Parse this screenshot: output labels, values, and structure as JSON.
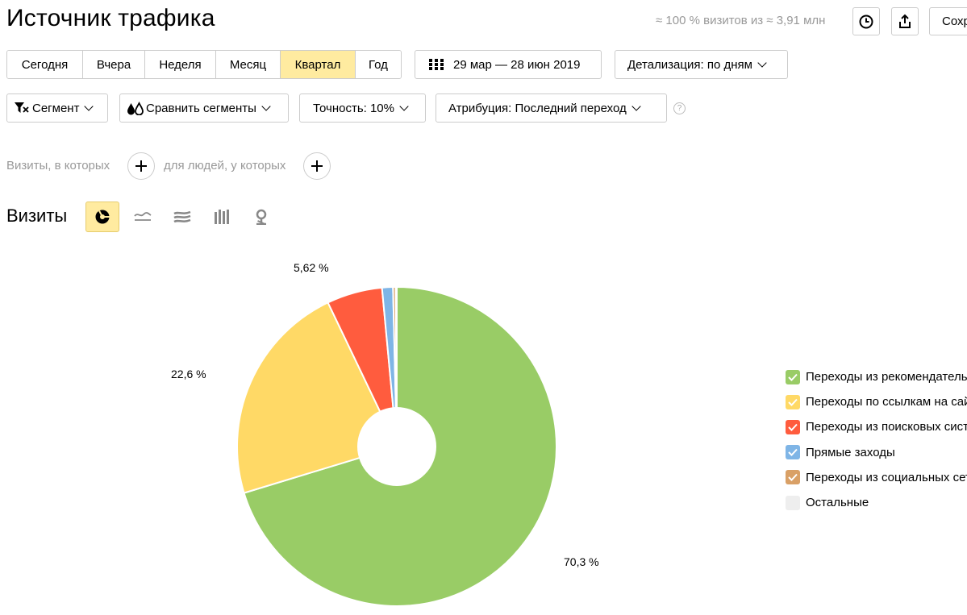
{
  "header": {
    "title": "Источник трафика",
    "sample_info": "≈ 100 % визитов из ≈ 3,91 млн",
    "save_label": "Сохранить"
  },
  "period": {
    "buttons": [
      "Сегодня",
      "Вчера",
      "Неделя",
      "Месяц",
      "Квартал",
      "Год"
    ],
    "active": "Квартал",
    "date_range": "29 мар — 28 июн 2019",
    "detail_label": "Детализация: по дням"
  },
  "filters": {
    "segment_label": "Сегмент",
    "compare_label": "Сравнить сегменты",
    "accuracy_label": "Точность: 10%",
    "attribution_label": "Атрибуция: Последний переход",
    "help_glyph": "?"
  },
  "conditions": {
    "visits_label": "Визиты, в которых",
    "people_label": "для людей, у которых"
  },
  "chart_section": {
    "title": "Визиты",
    "chart_types": [
      "pie-chart-icon",
      "line-chart-icon",
      "area-chart-icon",
      "bar-chart-icon",
      "map-icon"
    ],
    "active_type": "pie-chart-icon"
  },
  "chart_data": {
    "type": "pie",
    "donut": true,
    "series": [
      {
        "name": "Переходы из рекомендательных систем",
        "value": 70.3,
        "label": "70,3 %",
        "color": "#99cc66"
      },
      {
        "name": "Переходы по ссылкам на сайтах",
        "value": 22.6,
        "label": "22,6 %",
        "color": "#ffd966"
      },
      {
        "name": "Переходы из поисковых систем",
        "value": 5.62,
        "label": "5,62 %",
        "color": "#ff5c3e"
      },
      {
        "name": "Прямые заходы",
        "value": 1.1,
        "label": "",
        "color": "#7fb5e6"
      },
      {
        "name": "Переходы из социальных сетей",
        "value": 0.28,
        "label": "",
        "color": "#d9a066"
      },
      {
        "name": "Остальные",
        "value": 0.1,
        "label": "",
        "color": "#eeeeee"
      }
    ],
    "legend_position": "right"
  },
  "legend_items": [
    {
      "label": "Переходы из рекомендательных систем",
      "color": "#99cc66",
      "checked": true
    },
    {
      "label": "Переходы по ссылкам на сайтах",
      "color": "#ffd966",
      "checked": true
    },
    {
      "label": "Переходы из поисковых систем",
      "color": "#ff5c3e",
      "checked": true
    },
    {
      "label": "Прямые заходы",
      "color": "#7fb5e6",
      "checked": true
    },
    {
      "label": "Переходы из социальных сетей",
      "color": "#d9a066",
      "checked": true
    },
    {
      "label": "Остальные",
      "color": "#eeeeee",
      "checked": false
    }
  ]
}
